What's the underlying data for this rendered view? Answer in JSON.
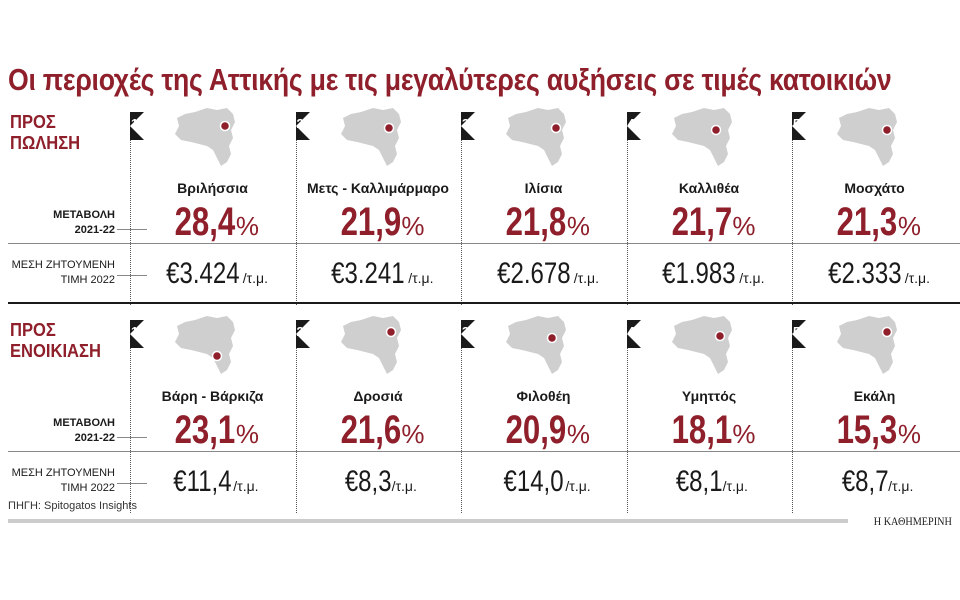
{
  "title": "Οι περιοχές της Αττικής με τις μεγαλύτερες αυξήσεις σε τιμές κατοικιών",
  "colors": {
    "accent": "#8e1f2b",
    "map": "#cfcfcf"
  },
  "row_labels": {
    "change": [
      "ΜΕΤΑΒΟΛΗ",
      "2021-22"
    ],
    "price": [
      "ΜΕΣΗ ΖΗΤΟΥΜΕΝΗ",
      "ΤΙΜΗ 2022"
    ]
  },
  "unit": "/τ.μ.",
  "percent_sign": "%",
  "source": "ΠΗΓΗ: Spitogatos Insights",
  "brand": "Η ΚΑΘΗΜΕΡΙΝΗ",
  "chart_data": {
    "type": "table",
    "title": "Οι περιοχές της Αττικής με τις μεγαλύτερες αυξήσεις σε τιμές κατοικιών",
    "sections": [
      {
        "label": [
          "ΠΡΟΣ",
          "ΠΩΛΗΣΗ"
        ],
        "items": [
          {
            "rank": "1",
            "area": "Βριλήσσια",
            "change": "28,4",
            "price": "€3.424"
          },
          {
            "rank": "2",
            "area": "Μετς - Καλλιμάρμαρο",
            "change": "21,9",
            "price": "€3.241"
          },
          {
            "rank": "3",
            "area": "Ιλίσια",
            "change": "21,8",
            "price": "€2.678"
          },
          {
            "rank": "4",
            "area": "Καλλιθέα",
            "change": "21,7",
            "price": "€1.983"
          },
          {
            "rank": "5",
            "area": "Μοσχάτο",
            "change": "21,3",
            "price": "€2.333"
          }
        ]
      },
      {
        "label": [
          "ΠΡΟΣ",
          "ΕΝΟΙΚΙΑΣΗ"
        ],
        "items": [
          {
            "rank": "1",
            "area": "Βάρη - Βάρκιζα",
            "change": "23,1",
            "price": "€11,4"
          },
          {
            "rank": "2",
            "area": "Δροσιά",
            "change": "21,6",
            "price": "€8,3"
          },
          {
            "rank": "3",
            "area": "Φιλοθέη",
            "change": "20,9",
            "price": "€14,0"
          },
          {
            "rank": "4",
            "area": "Υμηττός",
            "change": "18,1",
            "price": "€8,1"
          },
          {
            "rank": "5",
            "area": "Εκάλη",
            "change": "15,3",
            "price": "€8,7"
          }
        ]
      }
    ]
  }
}
